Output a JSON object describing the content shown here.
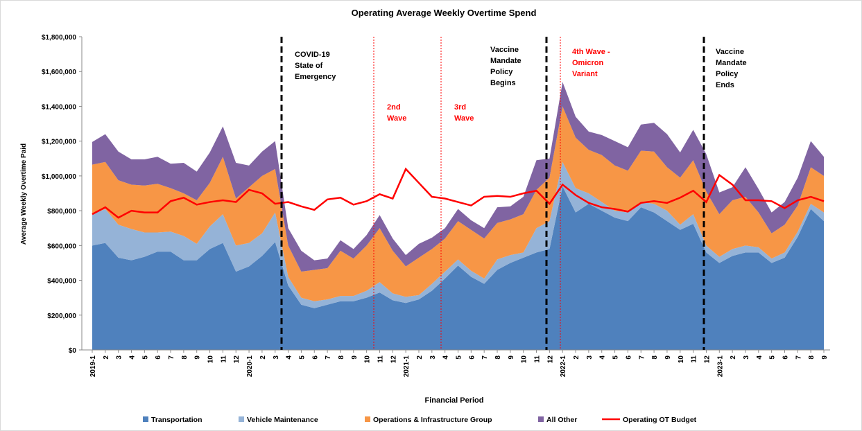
{
  "chart_data": {
    "type": "area",
    "title": "Operating Average Weekly Overtime Spend",
    "x_label": "Financial Period",
    "y_label": "Average Weekly Overtime Paid",
    "categories": [
      "2019-1",
      "2",
      "3",
      "4",
      "5",
      "6",
      "7",
      "8",
      "9",
      "10",
      "11",
      "12",
      "2020-1",
      "2",
      "3",
      "4",
      "5",
      "6",
      "7",
      "8",
      "9",
      "10",
      "11",
      "12",
      "2021-1",
      "2",
      "3",
      "4",
      "5",
      "6",
      "7",
      "8",
      "9",
      "10",
      "11",
      "12",
      "2022-1",
      "2",
      "3",
      "4",
      "5",
      "6",
      "7",
      "8",
      "9",
      "10",
      "11",
      "12",
      "2023-1",
      "2",
      "3",
      "4",
      "5",
      "6",
      "7",
      "8",
      "9"
    ],
    "ylim": [
      0,
      1800000
    ],
    "yticks": [
      {
        "value": 0,
        "label": "$0"
      },
      {
        "value": 200000,
        "label": "$200,000"
      },
      {
        "value": 400000,
        "label": "$400,000"
      },
      {
        "value": 600000,
        "label": "$600,000"
      },
      {
        "value": 800000,
        "label": "$800,000"
      },
      {
        "value": 1000000,
        "label": "$1,000,000"
      },
      {
        "value": 1200000,
        "label": "$1,200,000"
      },
      {
        "value": 1400000,
        "label": "$1,400,000"
      },
      {
        "value": 1600000,
        "label": "$1,600,000"
      },
      {
        "value": 1800000,
        "label": "$1,800,000"
      }
    ],
    "series": [
      {
        "name": "Transportation",
        "color": "#4f81bd",
        "type": "stacked-area",
        "values": [
          600000,
          615000,
          530000,
          515000,
          535000,
          565000,
          565000,
          515000,
          515000,
          580000,
          615000,
          450000,
          480000,
          540000,
          620000,
          370000,
          260000,
          240000,
          260000,
          280000,
          280000,
          300000,
          330000,
          285000,
          270000,
          290000,
          340000,
          410000,
          485000,
          420000,
          380000,
          460000,
          500000,
          530000,
          560000,
          580000,
          940000,
          790000,
          840000,
          800000,
          760000,
          740000,
          820000,
          790000,
          740000,
          690000,
          725000,
          560000,
          500000,
          540000,
          560000,
          560000,
          500000,
          530000,
          650000,
          810000,
          740000
        ]
      },
      {
        "name": "Vehicle Maintenance",
        "color": "#95b3d7",
        "type": "stacked-area",
        "values": [
          180000,
          195000,
          190000,
          180000,
          140000,
          110000,
          115000,
          140000,
          95000,
          130000,
          165000,
          150000,
          135000,
          130000,
          170000,
          50000,
          40000,
          40000,
          30000,
          30000,
          30000,
          40000,
          60000,
          40000,
          35000,
          25000,
          40000,
          40000,
          35000,
          35000,
          30000,
          60000,
          45000,
          30000,
          140000,
          160000,
          140000,
          140000,
          60000,
          50000,
          40000,
          50000,
          30000,
          50000,
          60000,
          30000,
          55000,
          40000,
          35000,
          40000,
          40000,
          30000,
          25000,
          30000,
          30000,
          30000,
          50000
        ]
      },
      {
        "name": "Operations & Infrastructure Group",
        "color": "#f79646",
        "type": "stacked-area",
        "values": [
          285000,
          270000,
          255000,
          255000,
          270000,
          280000,
          250000,
          245000,
          250000,
          250000,
          330000,
          270000,
          320000,
          330000,
          250000,
          180000,
          150000,
          180000,
          180000,
          260000,
          215000,
          260000,
          310000,
          245000,
          175000,
          215000,
          200000,
          190000,
          220000,
          235000,
          230000,
          210000,
          205000,
          220000,
          220000,
          250000,
          320000,
          290000,
          250000,
          270000,
          260000,
          240000,
          295000,
          300000,
          250000,
          270000,
          310000,
          310000,
          245000,
          280000,
          280000,
          200000,
          145000,
          160000,
          150000,
          210000,
          210000
        ]
      },
      {
        "name": "All Other",
        "color": "#8064a2",
        "type": "stacked-area",
        "values": [
          130000,
          160000,
          165000,
          145000,
          150000,
          155000,
          140000,
          175000,
          165000,
          175000,
          175000,
          205000,
          125000,
          140000,
          160000,
          100000,
          120000,
          55000,
          55000,
          60000,
          55000,
          60000,
          75000,
          70000,
          65000,
          80000,
          65000,
          60000,
          70000,
          55000,
          60000,
          90000,
          75000,
          100000,
          170000,
          110000,
          140000,
          120000,
          105000,
          115000,
          140000,
          135000,
          150000,
          165000,
          190000,
          145000,
          175000,
          215000,
          125000,
          75000,
          170000,
          135000,
          120000,
          130000,
          160000,
          150000,
          110000
        ]
      },
      {
        "name": "Operating OT Budget",
        "color": "#ff0000",
        "type": "line",
        "values": [
          780000,
          820000,
          760000,
          800000,
          790000,
          790000,
          855000,
          875000,
          835000,
          850000,
          860000,
          850000,
          920000,
          900000,
          840000,
          850000,
          825000,
          805000,
          865000,
          875000,
          835000,
          855000,
          895000,
          870000,
          1040000,
          960000,
          880000,
          870000,
          850000,
          830000,
          880000,
          885000,
          880000,
          900000,
          915000,
          840000,
          950000,
          890000,
          845000,
          820000,
          810000,
          795000,
          845000,
          855000,
          845000,
          875000,
          915000,
          850000,
          1005000,
          950000,
          860000,
          860000,
          855000,
          815000,
          860000,
          880000,
          855000
        ]
      }
    ],
    "annotations": [
      {
        "lines": [
          "COVID-19",
          "State of",
          "Emergency"
        ],
        "color": "#000000"
      },
      {
        "lines": [
          "2nd",
          "Wave"
        ],
        "color": "#ff0000"
      },
      {
        "lines": [
          "3rd",
          "Wave"
        ],
        "color": "#ff0000"
      },
      {
        "lines": [
          "Vaccine",
          "Mandate",
          "Policy",
          "Begins"
        ],
        "color": "#000000"
      },
      {
        "lines": [
          "4th Wave -",
          "Omicron",
          "Variant"
        ],
        "color": "#ff0000"
      },
      {
        "lines": [
          "Vaccine",
          "Mandate",
          "Policy",
          "Ends"
        ],
        "color": "#000000"
      }
    ]
  }
}
